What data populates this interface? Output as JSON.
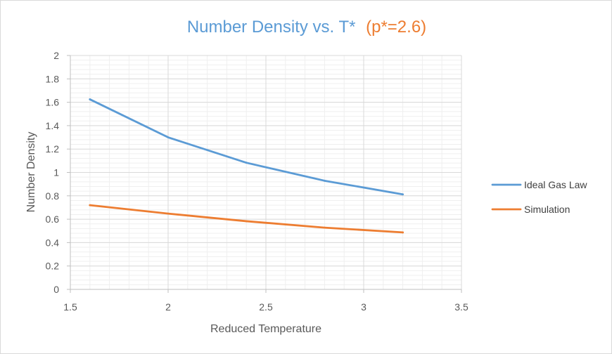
{
  "chart_data": {
    "type": "line",
    "title": {
      "main": "Number Density vs. T*",
      "suffix": "(p*=2.6)",
      "main_color": "#5b9bd5",
      "suffix_color": "#ed7d31"
    },
    "xlabel": "Reduced Temperature",
    "ylabel": "Number Density",
    "xlim": [
      1.5,
      3.5
    ],
    "ylim": [
      0,
      2
    ],
    "x_ticks": [
      1.5,
      2,
      2.5,
      3,
      3.5
    ],
    "x_tick_labels": [
      "1.5",
      "2",
      "2.5",
      "3",
      "3.5"
    ],
    "y_ticks": [
      0,
      0.2,
      0.4,
      0.6,
      0.8,
      1,
      1.2,
      1.4,
      1.6,
      1.8,
      2
    ],
    "y_tick_labels": [
      "0",
      "0.2",
      "0.4",
      "0.6",
      "0.8",
      "1",
      "1.2",
      "1.4",
      "1.6",
      "1.8",
      "2"
    ],
    "x_minor_step": 0.1,
    "y_minor_step": 0.04,
    "grid": true,
    "legend_position": "right",
    "x": [
      1.6,
      2.0,
      2.4,
      2.8,
      3.2
    ],
    "series": [
      {
        "name": "Ideal Gas Law",
        "color": "#5b9bd5",
        "values": [
          1.625,
          1.3,
          1.083,
          0.929,
          0.8125
        ]
      },
      {
        "name": "Simulation",
        "color": "#ed7d31",
        "values": [
          0.72,
          0.648,
          0.583,
          0.528,
          0.487
        ]
      }
    ]
  }
}
